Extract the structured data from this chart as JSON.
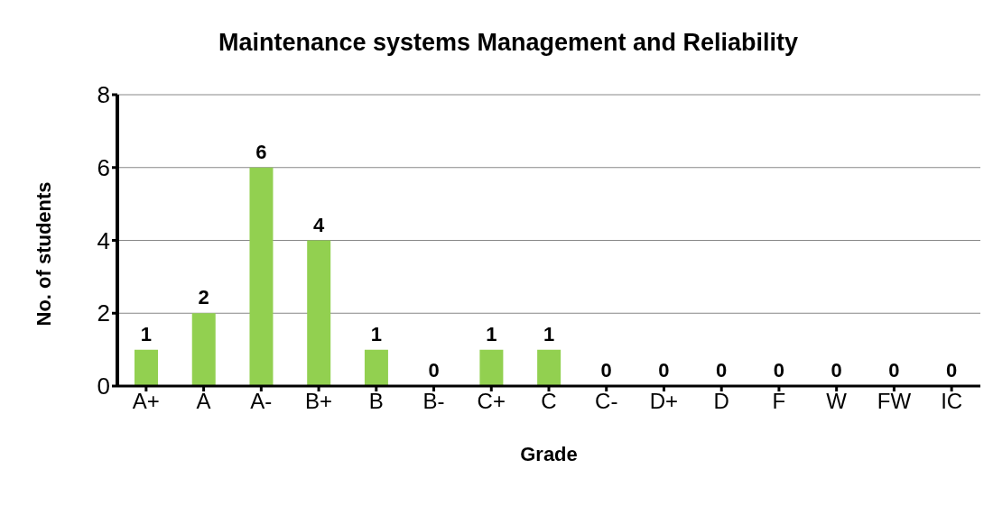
{
  "chart_data": {
    "type": "bar",
    "title": "Maintenance systems Management and Reliability",
    "xlabel": "Grade",
    "ylabel": "No. of students",
    "categories": [
      "A+",
      "A",
      "A-",
      "B+",
      "B",
      "B-",
      "C+",
      "C",
      "C-",
      "D+",
      "D",
      "F",
      "W",
      "FW",
      "IC"
    ],
    "values": [
      1,
      2,
      6,
      4,
      1,
      0,
      1,
      1,
      0,
      0,
      0,
      0,
      0,
      0,
      0
    ],
    "color": "#92d050",
    "ylim": [
      0,
      8
    ],
    "yticks": [
      0,
      2,
      4,
      6,
      8
    ],
    "grid": "y",
    "data_labels": true
  }
}
